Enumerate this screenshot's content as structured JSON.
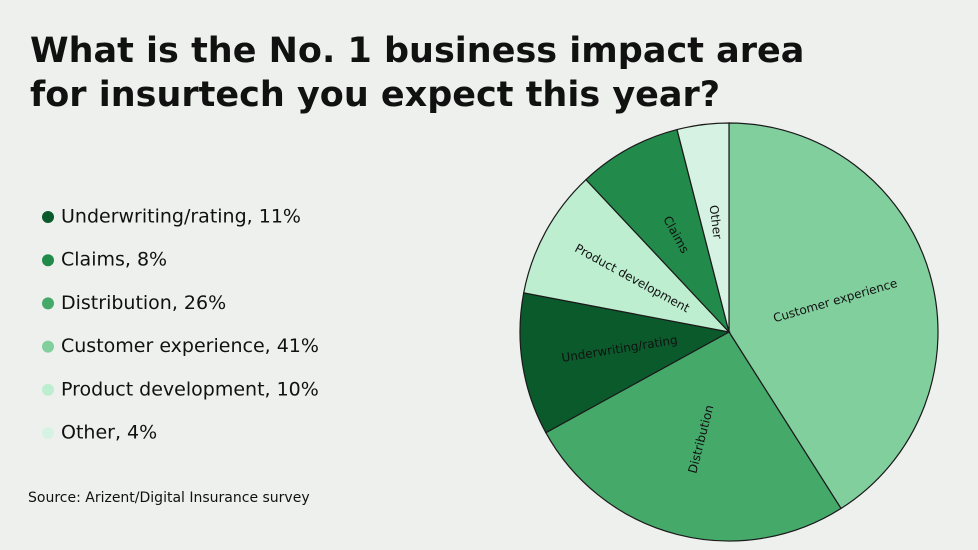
{
  "chart_data": {
    "type": "pie",
    "title": "What is the No. 1 business impact area for insurtech you expect this year?",
    "categories": [
      "Customer experience",
      "Distribution",
      "Underwriting/rating",
      "Product development",
      "Claims",
      "Other"
    ],
    "values": [
      41,
      26,
      11,
      10,
      8,
      4
    ],
    "colors": [
      "#82cf9e",
      "#45a96a",
      "#0b5a2c",
      "#bdeed0",
      "#228a4a",
      "#d6f2e2"
    ],
    "legend": [
      "Underwriting/rating, 11%",
      "Claims, 8%",
      "Distribution, 26%",
      "Customer experience, 41%",
      "Product development, 10%",
      "Other, 4%"
    ],
    "source": "Source: Arizent/Digital Insurance survey"
  }
}
